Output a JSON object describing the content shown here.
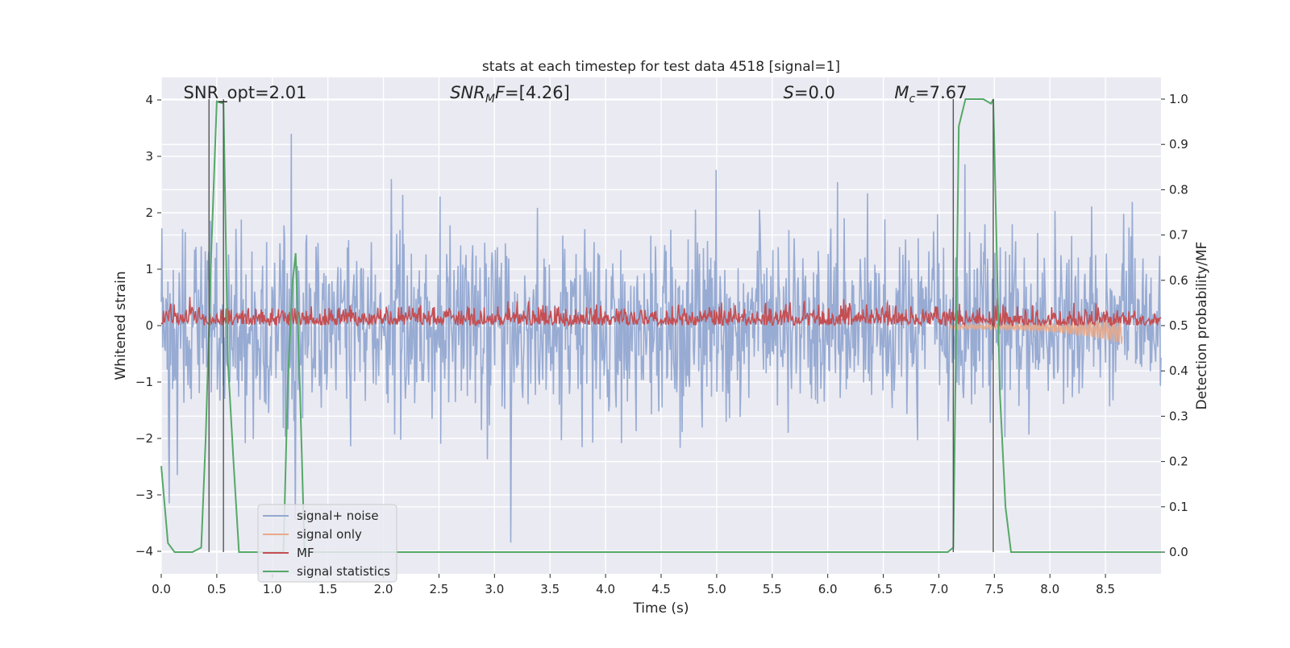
{
  "chart_data": {
    "type": "line",
    "title": "stats at each timestep for test data 4518 [signal=1]",
    "xlabel": "Time (s)",
    "ylabel": "Whitened strain",
    "ylabel_right": "Detection probability/MF",
    "xlim": [
      0.0,
      9.0
    ],
    "ylim": [
      -4.4,
      4.4
    ],
    "ylim_right": [
      -0.048,
      1.048
    ],
    "x_ticks": [
      "0.0",
      "0.5",
      "1.0",
      "1.5",
      "2.0",
      "2.5",
      "3.0",
      "3.5",
      "4.0",
      "4.5",
      "5.0",
      "5.5",
      "6.0",
      "6.5",
      "7.0",
      "7.5",
      "8.0",
      "8.5"
    ],
    "x_tick_values": [
      0.0,
      0.5,
      1.0,
      1.5,
      2.0,
      2.5,
      3.0,
      3.5,
      4.0,
      4.5,
      5.0,
      5.5,
      6.0,
      6.5,
      7.0,
      7.5,
      8.0,
      8.5
    ],
    "y_ticks": [
      "−4",
      "−3",
      "−2",
      "−1",
      "0",
      "1",
      "2",
      "3",
      "4"
    ],
    "y_tick_values": [
      -4,
      -3,
      -2,
      -1,
      0,
      1,
      2,
      3,
      4
    ],
    "y_ticks_right": [
      "0.0",
      "0.1",
      "0.2",
      "0.3",
      "0.4",
      "0.5",
      "0.6",
      "0.7",
      "0.8",
      "0.9",
      "1.0"
    ],
    "y_tick_values_right": [
      0.0,
      0.1,
      0.2,
      0.3,
      0.4,
      0.5,
      0.6,
      0.7,
      0.8,
      0.9,
      1.0
    ],
    "grid": true,
    "legend_position": "lower-left",
    "annotations": [
      {
        "text": "SNR_opt=2.01",
        "x": 0.2
      },
      {
        "text": "SNRMF=[4.26]",
        "x": 2.6
      },
      {
        "text": "S=0.0",
        "x": 5.6
      },
      {
        "text": "Mc=7.67",
        "x": 6.6
      }
    ],
    "vertical_markers": [
      0.43,
      0.56,
      7.13,
      7.49
    ],
    "series": [
      {
        "name": "signal+ noise",
        "color": "#92a8d1",
        "axis": "left",
        "description_envelope": {
          "typical_peak_positive": [
            2.0,
            3.4
          ],
          "typical_peak_negative": [
            -2.0,
            -4.0
          ]
        }
      },
      {
        "name": "signal only",
        "color": "#e8a98a",
        "axis": "left",
        "x": [
          7.1,
          7.5,
          8.0,
          8.3,
          8.5,
          8.6,
          8.65
        ],
        "y": [
          0.0,
          -0.02,
          -0.05,
          -0.08,
          -0.12,
          -0.18,
          -0.25
        ]
      },
      {
        "name": "MF",
        "color": "#c44e52",
        "axis": "right",
        "typical_range": [
          0.5,
          0.6
        ]
      },
      {
        "name": "signal statistics",
        "color": "#55a868",
        "axis": "right",
        "x": [
          0.0,
          0.06,
          0.12,
          0.2,
          0.28,
          0.36,
          0.4,
          0.45,
          0.5,
          0.56,
          0.6,
          0.65,
          0.7,
          1.0,
          1.1,
          1.14,
          1.18,
          1.21,
          1.25,
          1.29,
          1.5,
          7.08,
          7.13,
          7.18,
          7.24,
          7.4,
          7.47,
          7.49,
          7.55,
          7.6,
          7.65,
          9.0
        ],
        "y": [
          0.19,
          0.02,
          0.0,
          0.0,
          0.0,
          0.01,
          0.25,
          0.66,
          0.995,
          0.99,
          0.42,
          0.2,
          0.0,
          0.0,
          0.0,
          0.38,
          0.59,
          0.66,
          0.35,
          0.0,
          0.0,
          0.0,
          0.01,
          0.94,
          1.0,
          1.0,
          0.99,
          1.0,
          0.35,
          0.1,
          0.0,
          0.0
        ]
      }
    ]
  }
}
